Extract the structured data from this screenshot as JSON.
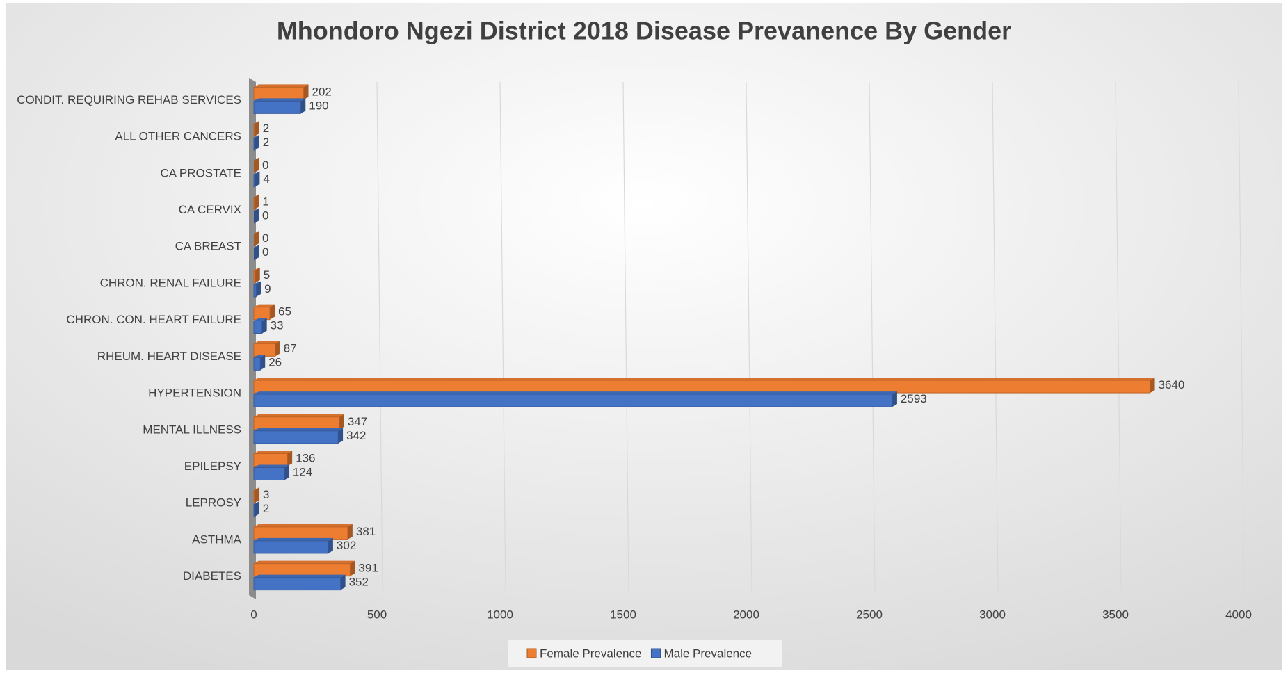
{
  "chart_data": {
    "type": "bar",
    "orientation": "horizontal",
    "title": "Mhondoro Ngezi District 2018 Disease Prevanence By Gender",
    "categories": [
      "CONDIT. REQUIRING REHAB SERVICES",
      "ALL OTHER CANCERS",
      "CA PROSTATE",
      "CA CERVIX",
      "CA BREAST",
      "CHRON. RENAL FAILURE",
      "CHRON. CON. HEART FAILURE",
      "RHEUM. HEART DISEASE",
      "HYPERTENSION",
      "MENTAL ILLNESS",
      "EPILEPSY",
      "LEPROSY",
      "ASTHMA",
      "DIABETES"
    ],
    "series": [
      {
        "name": "Female Prevalence",
        "color": "#ed7d31",
        "values": [
          202,
          2,
          0,
          1,
          0,
          5,
          65,
          87,
          3640,
          347,
          136,
          3,
          381,
          391
        ]
      },
      {
        "name": "Male Prevalence",
        "color": "#4472c4",
        "values": [
          190,
          2,
          4,
          0,
          0,
          9,
          33,
          26,
          2593,
          342,
          124,
          2,
          302,
          352
        ]
      }
    ],
    "xlim": [
      0,
      4000
    ],
    "xticks": [
      0,
      500,
      1000,
      1500,
      2000,
      2500,
      3000,
      3500,
      4000
    ],
    "grid": true,
    "legend": "bottom"
  }
}
